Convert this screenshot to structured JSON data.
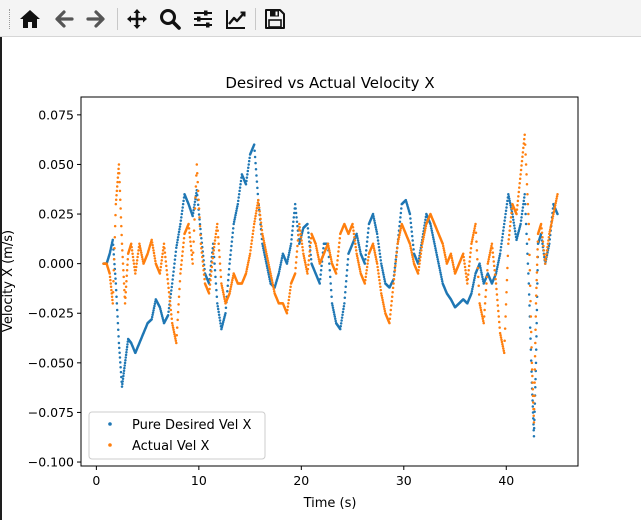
{
  "toolbar": {
    "buttons": [
      {
        "name": "home-button",
        "icon": "home-icon"
      },
      {
        "name": "back-button",
        "icon": "arrow-left-icon"
      },
      {
        "name": "forward-button",
        "icon": "arrow-right-icon"
      },
      {
        "name": "pan-button",
        "icon": "move-icon"
      },
      {
        "name": "zoom-button",
        "icon": "zoom-icon"
      },
      {
        "name": "configure-subplots-button",
        "icon": "sliders-icon"
      },
      {
        "name": "edit-axis-button",
        "icon": "line-chart-icon"
      },
      {
        "name": "save-button",
        "icon": "save-icon"
      }
    ]
  },
  "chart_data": {
    "type": "scatter",
    "title": "Desired vs Actual Velocity X",
    "xlabel": "Time (s)",
    "ylabel": "Velocity X (m/s)",
    "xlim": [
      -1.5,
      47
    ],
    "ylim": [
      -0.102,
      0.084
    ],
    "xticks": [
      0,
      10,
      20,
      30,
      40
    ],
    "xtick_labels": [
      "0",
      "10",
      "20",
      "30",
      "40"
    ],
    "yticks": [
      -0.1,
      -0.075,
      -0.05,
      -0.025,
      0.0,
      0.025,
      0.05,
      0.075
    ],
    "ytick_labels": [
      "−0.100",
      "−0.075",
      "−0.050",
      "−0.025",
      "0.000",
      "0.025",
      "0.050",
      "0.075"
    ],
    "grid": false,
    "legend_position": "lower-left",
    "series": [
      {
        "name": "Pure Desired Vel X",
        "color": "#1f77b4",
        "t": [
          0.7,
          1.0,
          1.3,
          1.6,
          1.9,
          2.2,
          2.5,
          2.8,
          3.1,
          3.4,
          3.8,
          4.2,
          4.6,
          5.0,
          5.4,
          5.8,
          6.2,
          6.6,
          7.0,
          7.4,
          7.8,
          8.2,
          8.6,
          9.0,
          9.4,
          9.8,
          10.2,
          10.6,
          11.0,
          11.4,
          11.8,
          12.2,
          12.6,
          13.0,
          13.4,
          13.8,
          14.2,
          14.6,
          15.0,
          15.4,
          15.8,
          16.2,
          16.6,
          17.0,
          17.4,
          17.8,
          18.2,
          18.6,
          19.0,
          19.4,
          19.8,
          20.2,
          20.6,
          21.0,
          21.4,
          21.8,
          22.2,
          22.6,
          23.0,
          23.4,
          23.8,
          24.2,
          24.6,
          25.0,
          25.4,
          25.8,
          26.2,
          26.6,
          27.0,
          27.4,
          27.8,
          28.2,
          28.6,
          29.0,
          29.4,
          29.8,
          30.2,
          30.6,
          31.0,
          31.4,
          31.8,
          32.2,
          32.6,
          33.0,
          33.4,
          33.8,
          34.2,
          34.6,
          35.0,
          35.4,
          35.8,
          36.2,
          36.6,
          37.0,
          37.4,
          37.8,
          38.2,
          38.6,
          39.0,
          39.4,
          39.8,
          40.2,
          40.6,
          41.0,
          41.4,
          41.8,
          42.2,
          42.5,
          42.7,
          42.9,
          43.1,
          43.4,
          43.8,
          44.2,
          44.6,
          45.0
        ],
        "v": [
          0.0,
          0.0,
          0.005,
          0.012,
          -0.01,
          -0.04,
          -0.062,
          -0.05,
          -0.038,
          -0.04,
          -0.045,
          -0.04,
          -0.035,
          -0.03,
          -0.028,
          -0.018,
          -0.022,
          -0.03,
          -0.026,
          -0.01,
          0.008,
          0.02,
          0.035,
          0.03,
          0.024,
          0.037,
          0.015,
          -0.005,
          -0.01,
          0.01,
          -0.02,
          -0.033,
          -0.025,
          0.0,
          0.02,
          0.03,
          0.045,
          0.04,
          0.055,
          0.06,
          0.032,
          0.01,
          0.0,
          -0.01,
          -0.012,
          -0.005,
          0.005,
          0.0,
          0.01,
          0.03,
          0.01,
          0.018,
          0.02,
          0.0,
          -0.005,
          -0.01,
          0.01,
          0.01,
          -0.02,
          -0.03,
          -0.033,
          -0.02,
          0.005,
          0.01,
          0.015,
          0.005,
          0.0,
          0.02,
          0.025,
          0.015,
          0.0,
          -0.01,
          -0.012,
          -0.008,
          0.01,
          0.03,
          0.032,
          0.025,
          0.005,
          0.0,
          0.012,
          0.025,
          0.02,
          0.01,
          0.0,
          -0.01,
          -0.015,
          -0.018,
          -0.022,
          -0.02,
          -0.018,
          -0.02,
          -0.015,
          -0.005,
          0.0,
          -0.01,
          -0.005,
          -0.01,
          -0.005,
          0.005,
          0.02,
          0.035,
          0.025,
          0.012,
          0.02,
          0.035,
          -0.01,
          -0.06,
          -0.087,
          -0.05,
          0.01,
          0.015,
          0.0,
          0.01,
          0.03,
          0.025
        ]
      },
      {
        "name": "Actual Vel X",
        "color": "#ff7f0e",
        "t": [
          0.7,
          1.0,
          1.3,
          1.6,
          1.9,
          2.2,
          2.5,
          2.8,
          3.1,
          3.4,
          3.8,
          4.2,
          4.6,
          5.0,
          5.4,
          5.8,
          6.2,
          6.6,
          7.0,
          7.4,
          7.8,
          8.2,
          8.6,
          9.0,
          9.4,
          9.8,
          10.2,
          10.6,
          11.0,
          11.4,
          11.8,
          12.2,
          12.6,
          13.0,
          13.4,
          13.8,
          14.2,
          14.6,
          15.0,
          15.4,
          15.8,
          16.2,
          16.6,
          17.0,
          17.4,
          17.8,
          18.2,
          18.6,
          19.0,
          19.4,
          19.8,
          20.2,
          20.6,
          21.0,
          21.4,
          21.8,
          22.2,
          22.6,
          23.0,
          23.4,
          23.8,
          24.2,
          24.6,
          25.0,
          25.4,
          25.8,
          26.2,
          26.6,
          27.0,
          27.4,
          27.8,
          28.2,
          28.6,
          29.0,
          29.4,
          29.8,
          30.2,
          30.6,
          31.0,
          31.4,
          31.8,
          32.2,
          32.6,
          33.0,
          33.4,
          33.8,
          34.2,
          34.6,
          35.0,
          35.4,
          35.8,
          36.2,
          36.6,
          37.0,
          37.4,
          37.8,
          38.2,
          38.6,
          39.0,
          39.4,
          39.8,
          40.2,
          40.6,
          41.0,
          41.4,
          41.8,
          42.2,
          42.5,
          42.7,
          42.9,
          43.1,
          43.4,
          43.8,
          44.2,
          44.6,
          45.0
        ],
        "v": [
          0.0,
          0.0,
          -0.005,
          -0.02,
          0.03,
          0.05,
          0.01,
          -0.02,
          0.005,
          0.01,
          -0.005,
          0.01,
          0.0,
          0.005,
          0.012,
          0.0,
          -0.005,
          0.01,
          -0.01,
          -0.03,
          -0.04,
          -0.005,
          0.015,
          0.02,
          0.0,
          0.05,
          0.01,
          -0.01,
          -0.015,
          0.005,
          0.02,
          -0.01,
          -0.02,
          -0.015,
          -0.005,
          -0.01,
          -0.01,
          -0.005,
          0.005,
          0.02,
          0.032,
          0.015,
          0.005,
          -0.005,
          -0.015,
          -0.02,
          -0.02,
          -0.025,
          -0.01,
          -0.005,
          0.02,
          0.005,
          -0.005,
          0.015,
          0.01,
          0.0,
          0.005,
          0.01,
          0.0,
          -0.005,
          0.015,
          0.02,
          0.015,
          0.02,
          0.005,
          -0.005,
          -0.01,
          0.005,
          0.01,
          0.0,
          -0.015,
          -0.025,
          -0.03,
          -0.01,
          0.01,
          0.02,
          0.015,
          0.01,
          0.0,
          -0.005,
          0.01,
          0.02,
          0.025,
          0.02,
          0.015,
          0.01,
          0.0,
          0.005,
          -0.005,
          0.0,
          0.005,
          -0.01,
          0.01,
          0.02,
          -0.02,
          -0.03,
          0.0,
          0.01,
          -0.01,
          -0.035,
          -0.045,
          0.01,
          0.03,
          0.025,
          0.045,
          0.065,
          0.02,
          -0.05,
          -0.08,
          -0.02,
          0.015,
          0.02,
          0.0,
          0.015,
          0.025,
          0.035
        ]
      }
    ]
  }
}
